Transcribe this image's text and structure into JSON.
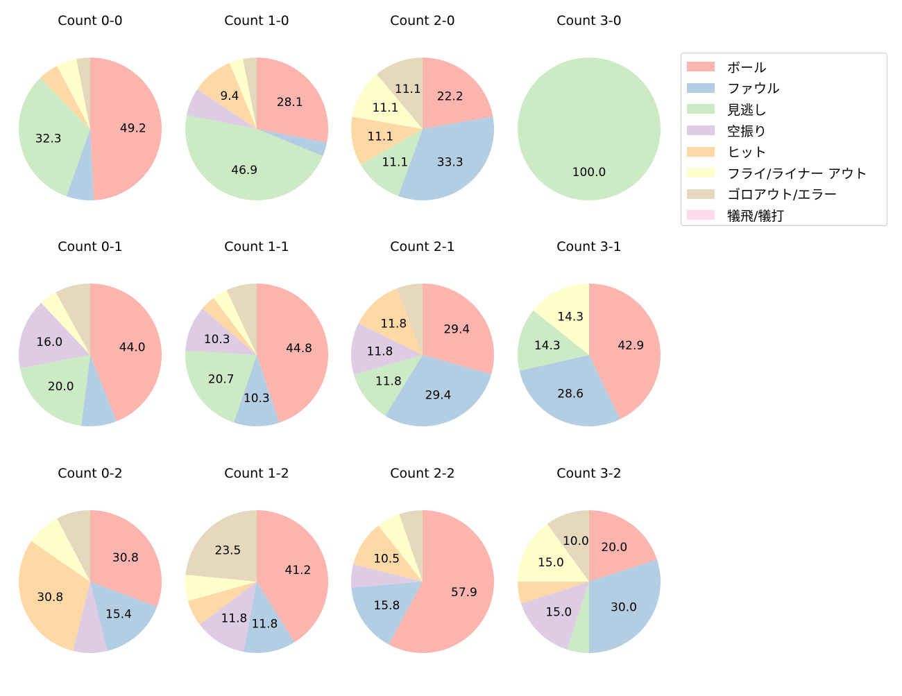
{
  "chart_data": {
    "type": "pie",
    "legend_position": "top-right",
    "legend": [
      "ボール",
      "ファウル",
      "見逃し",
      "空振り",
      "ヒット",
      "フライ/ライナー アウト",
      "ゴロアウト/エラー",
      "犠飛/犠打"
    ],
    "colors": [
      "#fbb4ae",
      "#b3cde3",
      "#ccebc5",
      "#decbe4",
      "#fed9a6",
      "#ffffcc",
      "#e5d8bd",
      "#fddaec"
    ],
    "pies": [
      {
        "title": "Count 0-0",
        "values": [
          49.2,
          6.2,
          32.3,
          0,
          4.6,
          4.6,
          3.1,
          0
        ]
      },
      {
        "title": "Count 1-0",
        "values": [
          28.1,
          3.1,
          46.9,
          6.3,
          9.4,
          3.1,
          3.1,
          0
        ]
      },
      {
        "title": "Count 2-0",
        "values": [
          22.2,
          33.3,
          11.1,
          0,
          11.1,
          11.1,
          11.1,
          0
        ]
      },
      {
        "title": "Count 3-0",
        "values": [
          0,
          0,
          100,
          0,
          0,
          0,
          0,
          0
        ]
      },
      {
        "title": "Count 0-1",
        "values": [
          44.0,
          8.0,
          20.0,
          16.0,
          0,
          4.0,
          8.0,
          0
        ]
      },
      {
        "title": "Count 1-1",
        "values": [
          44.8,
          10.3,
          20.7,
          10.3,
          3.4,
          3.4,
          6.9,
          0
        ]
      },
      {
        "title": "Count 2-1",
        "values": [
          29.4,
          29.4,
          11.8,
          11.8,
          11.8,
          0,
          5.9,
          0
        ]
      },
      {
        "title": "Count 3-1",
        "values": [
          42.9,
          28.6,
          14.3,
          0,
          0,
          14.3,
          0,
          0
        ]
      },
      {
        "title": "Count 0-2",
        "values": [
          30.8,
          15.4,
          0,
          7.7,
          30.8,
          7.7,
          7.7,
          0
        ]
      },
      {
        "title": "Count 1-2",
        "values": [
          41.2,
          11.8,
          0,
          11.8,
          5.9,
          5.9,
          23.5,
          0
        ]
      },
      {
        "title": "Count 2-2",
        "values": [
          57.9,
          15.8,
          0,
          5.3,
          10.5,
          5.3,
          5.3,
          0
        ]
      },
      {
        "title": "Count 3-2",
        "values": [
          20.0,
          30.0,
          5.0,
          15.0,
          5.0,
          15.0,
          10.0,
          0
        ]
      }
    ]
  }
}
